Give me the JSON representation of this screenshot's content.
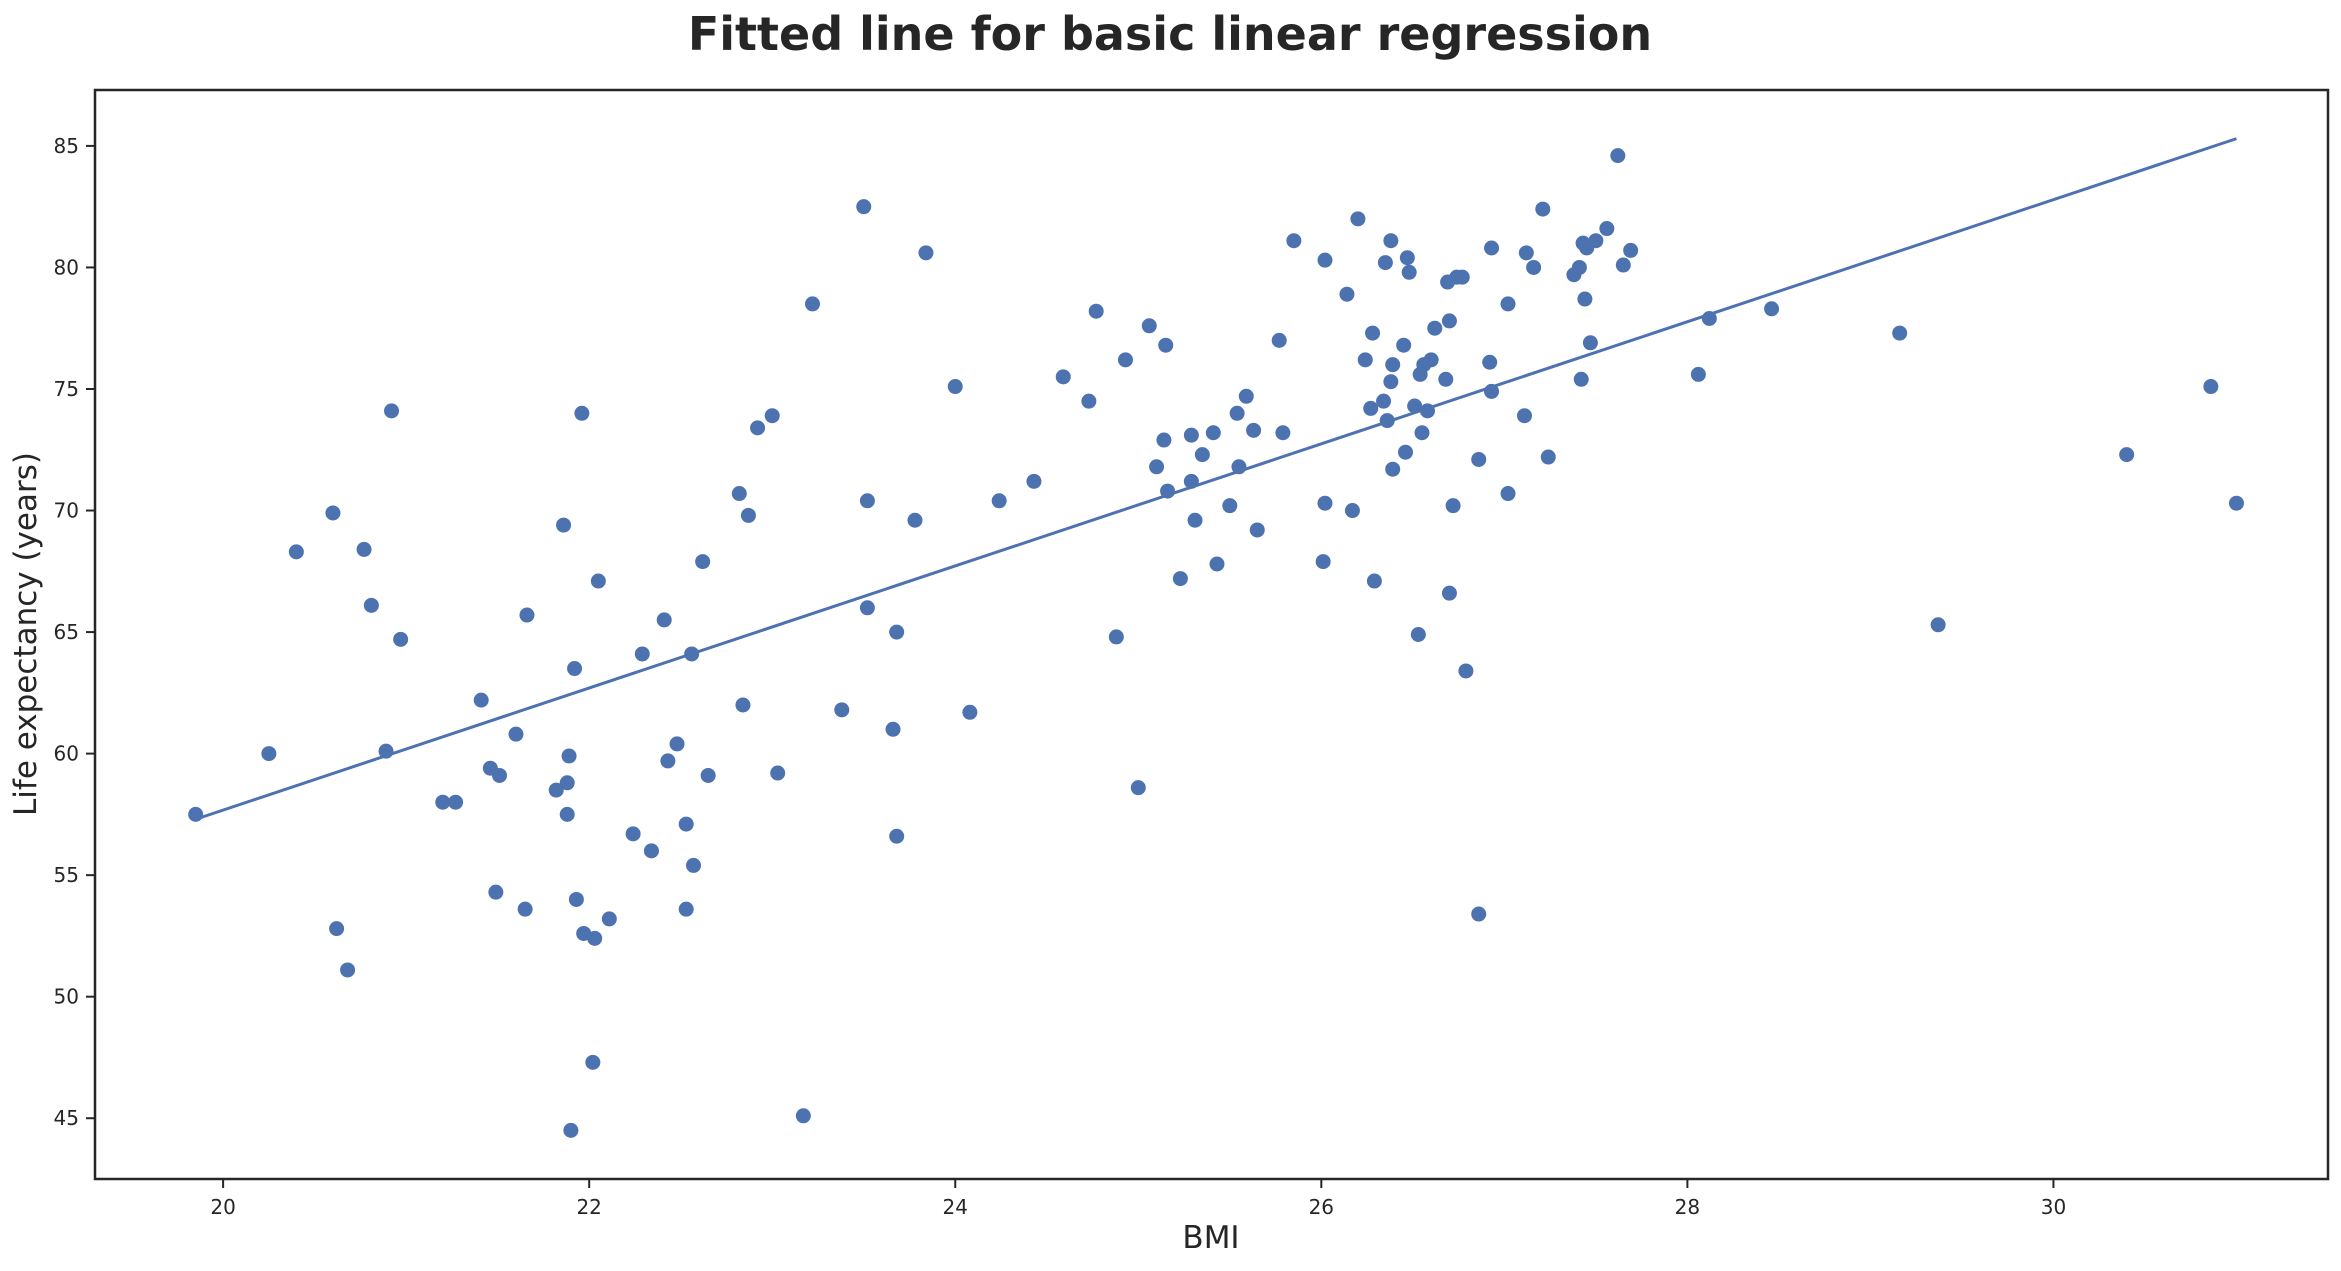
{
  "chart_data": {
    "type": "scatter",
    "title": "Fitted line for basic linear regression",
    "xlabel": "BMI",
    "ylabel": "Life expectancy (years)",
    "xlim": [
      19.3,
      31.5
    ],
    "ylim": [
      42.5,
      87.3
    ],
    "xticks": [
      20,
      22,
      24,
      26,
      28,
      30
    ],
    "yticks": [
      45,
      50,
      55,
      60,
      65,
      70,
      75,
      80,
      85
    ],
    "grid": false,
    "legend": "none",
    "colors": {
      "points": "#4c72b0",
      "line": "#4c72b0",
      "frame": "#262626"
    },
    "fit_line": {
      "x": [
        19.85,
        31.0
      ],
      "y": [
        57.3,
        85.3
      ]
    },
    "series": [
      {
        "points": [
          [
            19.85,
            57.5
          ],
          [
            20.25,
            60.0
          ],
          [
            20.4,
            68.3
          ],
          [
            20.6,
            69.9
          ],
          [
            20.62,
            52.8
          ],
          [
            20.68,
            51.1
          ],
          [
            20.77,
            68.4
          ],
          [
            20.81,
            66.1
          ],
          [
            20.89,
            60.1
          ],
          [
            20.92,
            74.1
          ],
          [
            20.97,
            64.7
          ],
          [
            21.2,
            58.0
          ],
          [
            21.27,
            58.0
          ],
          [
            21.41,
            62.2
          ],
          [
            21.46,
            59.4
          ],
          [
            21.49,
            54.3
          ],
          [
            21.51,
            59.1
          ],
          [
            21.6,
            60.8
          ],
          [
            21.65,
            53.6
          ],
          [
            21.66,
            65.7
          ],
          [
            21.82,
            58.5
          ],
          [
            21.86,
            69.4
          ],
          [
            21.88,
            58.8
          ],
          [
            21.88,
            57.5
          ],
          [
            21.89,
            59.9
          ],
          [
            21.9,
            44.5
          ],
          [
            21.92,
            63.5
          ],
          [
            21.93,
            54.0
          ],
          [
            21.96,
            74.0
          ],
          [
            21.97,
            52.6
          ],
          [
            22.02,
            47.3
          ],
          [
            22.03,
            52.4
          ],
          [
            22.05,
            67.1
          ],
          [
            22.11,
            53.2
          ],
          [
            22.24,
            56.7
          ],
          [
            22.29,
            64.1
          ],
          [
            22.34,
            56.0
          ],
          [
            22.41,
            65.5
          ],
          [
            22.43,
            59.7
          ],
          [
            22.48,
            60.4
          ],
          [
            22.53,
            53.6
          ],
          [
            22.53,
            57.1
          ],
          [
            22.56,
            64.1
          ],
          [
            22.57,
            55.4
          ],
          [
            22.62,
            67.9
          ],
          [
            22.65,
            59.1
          ],
          [
            22.82,
            70.7
          ],
          [
            22.84,
            62.0
          ],
          [
            22.87,
            69.8
          ],
          [
            22.92,
            73.4
          ],
          [
            23.0,
            73.9
          ],
          [
            23.03,
            59.2
          ],
          [
            23.17,
            45.1
          ],
          [
            23.22,
            78.5
          ],
          [
            23.38,
            61.8
          ],
          [
            23.5,
            82.5
          ],
          [
            23.52,
            66.0
          ],
          [
            23.52,
            70.4
          ],
          [
            23.66,
            61.0
          ],
          [
            23.68,
            65.0
          ],
          [
            23.68,
            56.6
          ],
          [
            23.78,
            69.6
          ],
          [
            23.84,
            80.6
          ],
          [
            24.0,
            75.1
          ],
          [
            24.08,
            61.7
          ],
          [
            24.24,
            70.4
          ],
          [
            24.43,
            71.2
          ],
          [
            24.59,
            75.5
          ],
          [
            24.73,
            74.5
          ],
          [
            24.77,
            78.2
          ],
          [
            24.88,
            64.8
          ],
          [
            24.93,
            76.2
          ],
          [
            25.0,
            58.6
          ],
          [
            25.06,
            77.6
          ],
          [
            25.1,
            71.8
          ],
          [
            25.14,
            72.9
          ],
          [
            25.15,
            76.8
          ],
          [
            25.16,
            70.8
          ],
          [
            25.23,
            67.2
          ],
          [
            25.29,
            71.2
          ],
          [
            25.29,
            73.1
          ],
          [
            25.31,
            69.6
          ],
          [
            25.35,
            72.3
          ],
          [
            25.41,
            73.2
          ],
          [
            25.43,
            67.8
          ],
          [
            25.5,
            70.2
          ],
          [
            25.54,
            74.0
          ],
          [
            25.55,
            71.8
          ],
          [
            25.59,
            74.7
          ],
          [
            25.63,
            73.3
          ],
          [
            25.65,
            69.2
          ],
          [
            25.77,
            77.0
          ],
          [
            25.79,
            73.2
          ],
          [
            25.85,
            81.1
          ],
          [
            26.01,
            67.9
          ],
          [
            26.02,
            70.3
          ],
          [
            26.02,
            80.3
          ],
          [
            26.14,
            78.9
          ],
          [
            26.17,
            70.0
          ],
          [
            26.2,
            82.0
          ],
          [
            26.24,
            76.2
          ],
          [
            26.27,
            74.2
          ],
          [
            26.28,
            77.3
          ],
          [
            26.29,
            67.1
          ],
          [
            26.34,
            74.5
          ],
          [
            26.35,
            80.2
          ],
          [
            26.36,
            73.7
          ],
          [
            26.38,
            81.1
          ],
          [
            26.38,
            75.3
          ],
          [
            26.39,
            71.7
          ],
          [
            26.39,
            76.0
          ],
          [
            26.45,
            76.8
          ],
          [
            26.46,
            72.4
          ],
          [
            26.47,
            80.4
          ],
          [
            26.48,
            79.8
          ],
          [
            26.51,
            74.3
          ],
          [
            26.53,
            64.9
          ],
          [
            26.54,
            75.6
          ],
          [
            26.55,
            73.2
          ],
          [
            26.56,
            76.0
          ],
          [
            26.58,
            74.1
          ],
          [
            26.6,
            76.2
          ],
          [
            26.62,
            77.5
          ],
          [
            26.68,
            75.4
          ],
          [
            26.69,
            79.4
          ],
          [
            26.7,
            77.8
          ],
          [
            26.7,
            66.6
          ],
          [
            26.72,
            70.2
          ],
          [
            26.74,
            79.6
          ],
          [
            26.77,
            79.6
          ],
          [
            26.79,
            63.4
          ],
          [
            26.86,
            72.1
          ],
          [
            26.86,
            53.4
          ],
          [
            26.92,
            76.1
          ],
          [
            26.93,
            80.8
          ],
          [
            26.93,
            74.9
          ],
          [
            27.02,
            70.7
          ],
          [
            27.02,
            78.5
          ],
          [
            27.11,
            73.9
          ],
          [
            27.12,
            80.6
          ],
          [
            27.16,
            80.0
          ],
          [
            27.21,
            82.4
          ],
          [
            27.24,
            72.2
          ],
          [
            27.38,
            79.7
          ],
          [
            27.41,
            80.0
          ],
          [
            27.42,
            75.4
          ],
          [
            27.43,
            81.0
          ],
          [
            27.44,
            78.7
          ],
          [
            27.45,
            80.8
          ],
          [
            27.47,
            76.9
          ],
          [
            27.5,
            81.1
          ],
          [
            27.56,
            81.6
          ],
          [
            27.62,
            84.6
          ],
          [
            27.65,
            80.1
          ],
          [
            27.69,
            80.7
          ],
          [
            28.06,
            75.6
          ],
          [
            28.12,
            77.9
          ],
          [
            28.46,
            78.3
          ],
          [
            29.16,
            77.3
          ],
          [
            29.37,
            65.3
          ],
          [
            30.4,
            72.3
          ],
          [
            30.86,
            75.1
          ],
          [
            31.0,
            70.3
          ]
        ]
      }
    ]
  }
}
